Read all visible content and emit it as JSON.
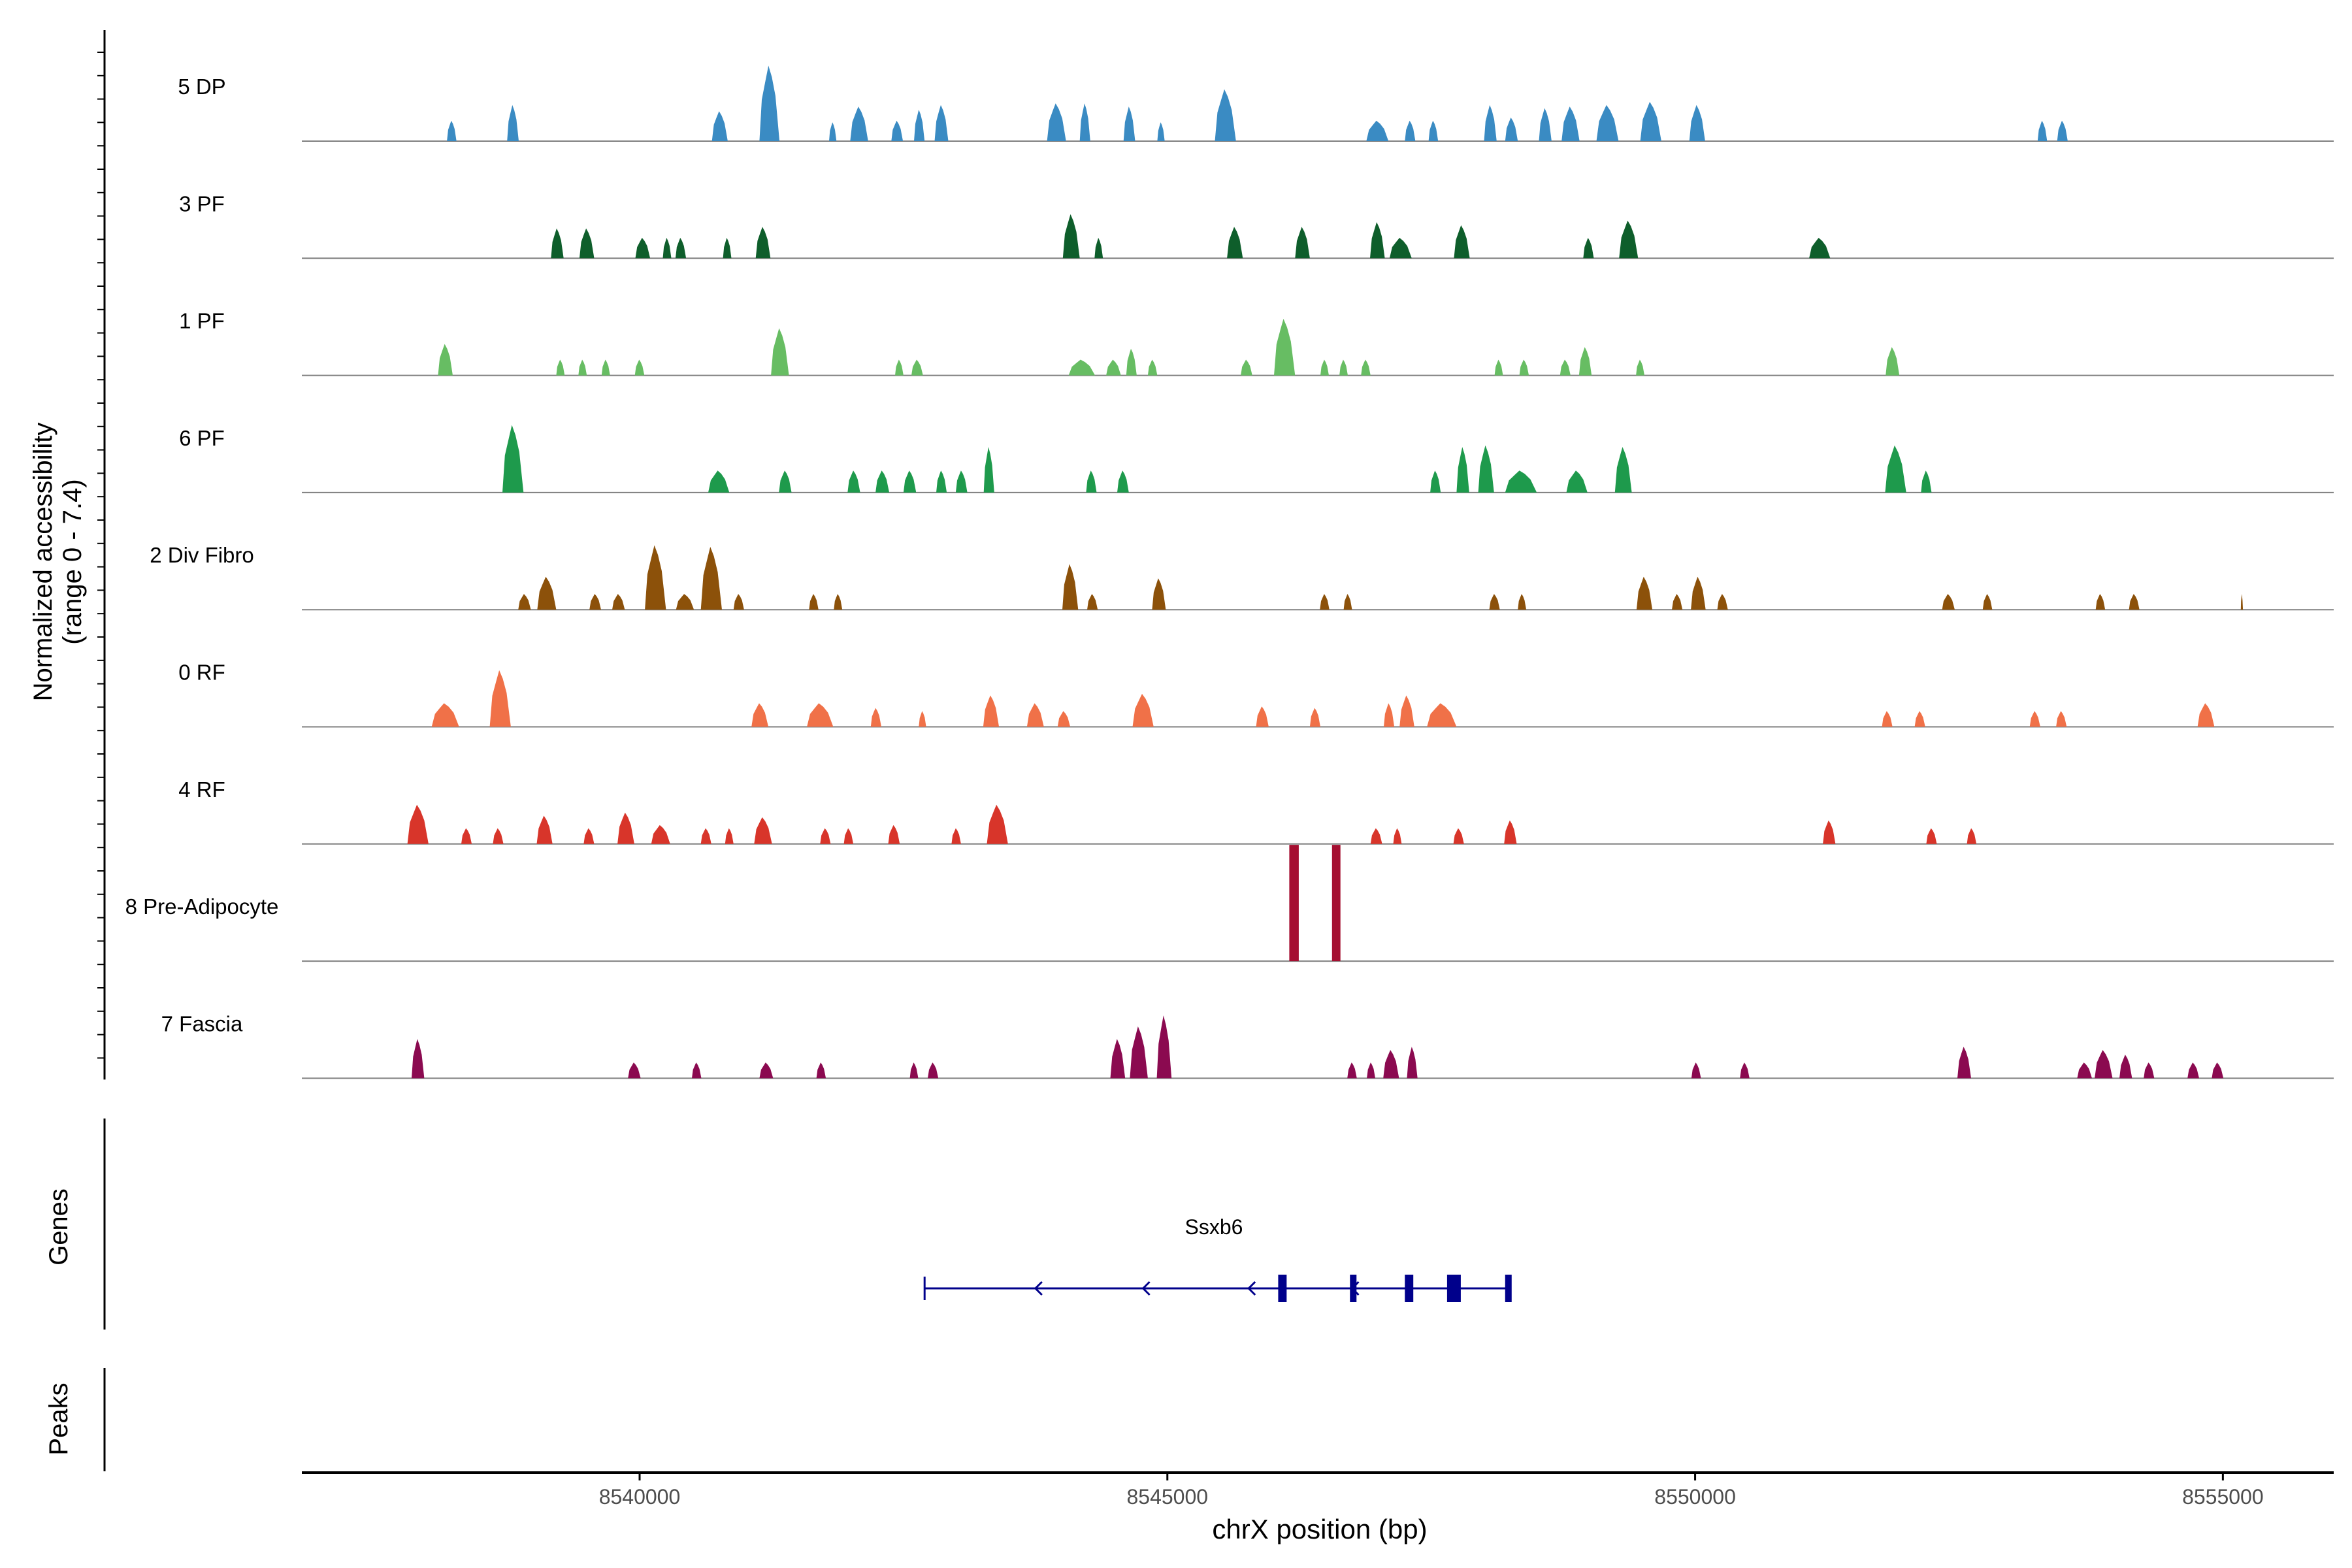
{
  "chart_data": {
    "type": "coverage",
    "ylabel_line1": "Normalized accessibility",
    "ylabel_line2": "(range 0 - 7.4)",
    "ylim": [
      0,
      7.4
    ],
    "xlabel": "chrX position (bp)",
    "xlim": [
      8536800,
      8556050
    ],
    "x_ticks": [
      {
        "value": 8540000,
        "label": "8540000"
      },
      {
        "value": 8545000,
        "label": "8545000"
      },
      {
        "value": 8550000,
        "label": "8550000"
      },
      {
        "value": 8555000,
        "label": "8555000"
      }
    ],
    "colors": {
      "5 DP": "#3a8bc3",
      "3 PF": "#0e5e2b",
      "1 PF": "#67bd63",
      "6 PF": "#1e9a4c",
      "2 Div Fibro": "#8c510a",
      "0 RF": "#f07148",
      "4 RF": "#d8352a",
      "8 Pre-Adipocyte": "#a50f31",
      "7 Fascia": "#8b0a50",
      "gene": "#00008b",
      "axis": "#000000",
      "baseline": "#808080",
      "tick_label": "#4d4d4d"
    },
    "tracks": [
      {
        "label": "5 DP",
        "peaks": [
          [
            8538220,
            90,
            1.3
          ],
          [
            8538800,
            110,
            2.3
          ],
          [
            8540760,
            150,
            1.9
          ],
          [
            8541230,
            190,
            4.8
          ],
          [
            8541830,
            70,
            1.2
          ],
          [
            8542080,
            170,
            2.2
          ],
          [
            8542440,
            110,
            1.3
          ],
          [
            8542650,
            100,
            2.0
          ],
          [
            8542860,
            130,
            2.3
          ],
          [
            8543950,
            180,
            2.4
          ],
          [
            8544220,
            100,
            2.4
          ],
          [
            8544640,
            110,
            2.2
          ],
          [
            8544940,
            70,
            1.2
          ],
          [
            8545550,
            200,
            3.3
          ],
          [
            8546990,
            210,
            1.3
          ],
          [
            8547300,
            100,
            1.3
          ],
          [
            8547520,
            90,
            1.3
          ],
          [
            8548060,
            120,
            2.3
          ],
          [
            8548260,
            120,
            1.5
          ],
          [
            8548580,
            120,
            2.1
          ],
          [
            8548820,
            170,
            2.2
          ],
          [
            8549170,
            210,
            2.3
          ],
          [
            8549580,
            200,
            2.5
          ],
          [
            8550020,
            150,
            2.3
          ],
          [
            8553290,
            90,
            1.3
          ],
          [
            8553480,
            100,
            1.3
          ]
        ]
      },
      {
        "label": "3 PF",
        "peaks": [
          [
            8539220,
            120,
            1.9
          ],
          [
            8539500,
            140,
            1.9
          ],
          [
            8540030,
            140,
            1.3
          ],
          [
            8540260,
            80,
            1.3
          ],
          [
            8540390,
            100,
            1.3
          ],
          [
            8540830,
            80,
            1.3
          ],
          [
            8541170,
            140,
            2.0
          ],
          [
            8544090,
            160,
            2.8
          ],
          [
            8544350,
            80,
            1.3
          ],
          [
            8545640,
            150,
            2.0
          ],
          [
            8546280,
            140,
            2.0
          ],
          [
            8546990,
            140,
            2.3
          ],
          [
            8547210,
            210,
            1.3
          ],
          [
            8547790,
            150,
            2.1
          ],
          [
            8548990,
            100,
            1.3
          ],
          [
            8549370,
            180,
            2.4
          ],
          [
            8551180,
            200,
            1.3
          ]
        ]
      },
      {
        "label": "1 PF",
        "peaks": [
          [
            8538160,
            140,
            2.0
          ],
          [
            8539250,
            80,
            1.0
          ],
          [
            8539460,
            80,
            1.0
          ],
          [
            8539680,
            80,
            1.0
          ],
          [
            8540000,
            90,
            1.0
          ],
          [
            8541330,
            170,
            3.0
          ],
          [
            8542460,
            80,
            1.0
          ],
          [
            8542630,
            110,
            1.0
          ],
          [
            8544190,
            250,
            1.0
          ],
          [
            8544490,
            140,
            1.0
          ],
          [
            8544660,
            100,
            1.7
          ],
          [
            8544860,
            90,
            1.0
          ],
          [
            8545750,
            110,
            1.0
          ],
          [
            8546110,
            200,
            3.6
          ],
          [
            8546490,
            80,
            1.0
          ],
          [
            8546670,
            80,
            1.0
          ],
          [
            8546880,
            90,
            1.0
          ],
          [
            8548140,
            80,
            1.0
          ],
          [
            8548380,
            90,
            1.0
          ],
          [
            8548770,
            100,
            1.0
          ],
          [
            8548960,
            120,
            1.8
          ],
          [
            8549480,
            80,
            1.0
          ],
          [
            8551870,
            130,
            1.8
          ]
        ]
      },
      {
        "label": "6 PF",
        "peaks": [
          [
            8538800,
            200,
            4.3
          ],
          [
            8540750,
            200,
            1.4
          ],
          [
            8541380,
            120,
            1.4
          ],
          [
            8542030,
            120,
            1.4
          ],
          [
            8542300,
            130,
            1.4
          ],
          [
            8542560,
            120,
            1.4
          ],
          [
            8542860,
            100,
            1.4
          ],
          [
            8543050,
            110,
            1.4
          ],
          [
            8543310,
            100,
            2.9
          ],
          [
            8544280,
            100,
            1.4
          ],
          [
            8544580,
            110,
            1.4
          ],
          [
            8547540,
            100,
            1.4
          ],
          [
            8547800,
            120,
            2.9
          ],
          [
            8548020,
            150,
            3.0
          ],
          [
            8548350,
            300,
            1.4
          ],
          [
            8548880,
            200,
            1.4
          ],
          [
            8549320,
            160,
            2.9
          ],
          [
            8551900,
            200,
            3.0
          ],
          [
            8552190,
            100,
            1.4
          ]
        ]
      },
      {
        "label": "2 Div Fibro",
        "peaks": [
          [
            8538910,
            120,
            1.0
          ],
          [
            8539120,
            180,
            2.1
          ],
          [
            8539580,
            110,
            1.0
          ],
          [
            8539800,
            120,
            1.0
          ],
          [
            8540150,
            200,
            4.1
          ],
          [
            8540430,
            170,
            1.0
          ],
          [
            8540680,
            200,
            4.0
          ],
          [
            8540940,
            100,
            1.0
          ],
          [
            8541650,
            90,
            1.0
          ],
          [
            8541880,
            80,
            1.0
          ],
          [
            8544080,
            150,
            2.9
          ],
          [
            8544290,
            100,
            1.0
          ],
          [
            8544920,
            130,
            2.0
          ],
          [
            8546490,
            90,
            1.0
          ],
          [
            8546710,
            80,
            1.0
          ],
          [
            8548100,
            100,
            1.0
          ],
          [
            8548360,
            80,
            1.0
          ],
          [
            8549520,
            150,
            2.1
          ],
          [
            8549830,
            100,
            1.0
          ],
          [
            8550030,
            140,
            2.1
          ],
          [
            8550260,
            100,
            1.0
          ],
          [
            8552400,
            120,
            1.0
          ],
          [
            8552770,
            90,
            1.0
          ],
          [
            8553840,
            90,
            1.0
          ],
          [
            8554160,
            100,
            1.0
          ],
          [
            8555180,
            20,
            1.0
          ]
        ]
      },
      {
        "label": "0 RF",
        "peaks": [
          [
            8538160,
            260,
            1.5
          ],
          [
            8538680,
            200,
            3.6
          ],
          [
            8541140,
            160,
            1.5
          ],
          [
            8541710,
            250,
            1.5
          ],
          [
            8542240,
            100,
            1.2
          ],
          [
            8542680,
            70,
            1.0
          ],
          [
            8543330,
            150,
            2.0
          ],
          [
            8543750,
            160,
            1.5
          ],
          [
            8544020,
            120,
            1.0
          ],
          [
            8544770,
            200,
            2.1
          ],
          [
            8545900,
            120,
            1.3
          ],
          [
            8546400,
            100,
            1.2
          ],
          [
            8547100,
            100,
            1.5
          ],
          [
            8547270,
            140,
            2.0
          ],
          [
            8547600,
            280,
            1.5
          ],
          [
            8551820,
            100,
            1.0
          ],
          [
            8552130,
            100,
            1.0
          ],
          [
            8553220,
            100,
            1.0
          ],
          [
            8553470,
            100,
            1.0
          ],
          [
            8554840,
            160,
            1.5
          ]
        ]
      },
      {
        "label": "4 RF",
        "peaks": [
          [
            8537900,
            200,
            2.5
          ],
          [
            8538360,
            100,
            1.0
          ],
          [
            8538660,
            100,
            1.0
          ],
          [
            8539100,
            150,
            1.8
          ],
          [
            8539520,
            100,
            1.0
          ],
          [
            8539870,
            160,
            2.0
          ],
          [
            8540200,
            180,
            1.2
          ],
          [
            8540630,
            100,
            1.0
          ],
          [
            8540850,
            80,
            1.0
          ],
          [
            8541170,
            170,
            1.7
          ],
          [
            8541760,
            100,
            1.0
          ],
          [
            8541980,
            90,
            1.0
          ],
          [
            8542410,
            110,
            1.2
          ],
          [
            8543000,
            90,
            1.0
          ],
          [
            8543390,
            200,
            2.5
          ],
          [
            8546980,
            110,
            1.0
          ],
          [
            8547180,
            80,
            1.0
          ],
          [
            8547760,
            100,
            1.0
          ],
          [
            8548250,
            120,
            1.5
          ],
          [
            8551270,
            120,
            1.5
          ],
          [
            8552240,
            100,
            1.0
          ],
          [
            8552620,
            90,
            1.0
          ]
        ]
      },
      {
        "label": "8 Pre-Adipocyte",
        "peaks": [
          [
            8546200,
            90,
            7.4
          ],
          [
            8546600,
            80,
            7.4
          ]
        ]
      },
      {
        "label": "7 Fascia",
        "peaks": [
          [
            8537900,
            120,
            2.5
          ],
          [
            8539950,
            120,
            1.0
          ],
          [
            8540540,
            90,
            1.0
          ],
          [
            8541200,
            130,
            1.0
          ],
          [
            8541720,
            90,
            1.0
          ],
          [
            8542600,
            80,
            1.0
          ],
          [
            8542780,
            100,
            1.0
          ],
          [
            8544530,
            140,
            2.5
          ],
          [
            8544730,
            170,
            3.3
          ],
          [
            8544970,
            140,
            4.0
          ],
          [
            8546750,
            90,
            1.0
          ],
          [
            8546930,
            80,
            1.0
          ],
          [
            8547120,
            150,
            1.8
          ],
          [
            8547320,
            100,
            2.0
          ],
          [
            8550010,
            90,
            1.0
          ],
          [
            8550470,
            90,
            1.0
          ],
          [
            8552550,
            130,
            2.0
          ],
          [
            8553690,
            140,
            1.0
          ],
          [
            8553870,
            170,
            1.8
          ],
          [
            8554080,
            120,
            1.5
          ],
          [
            8554300,
            100,
            1.0
          ],
          [
            8554720,
            110,
            1.0
          ],
          [
            8554950,
            110,
            1.0
          ]
        ]
      }
    ],
    "genes_label": "Genes",
    "peaks_label": "Peaks",
    "gene": {
      "name": "Ssxb6",
      "start": 8542700,
      "end": 8548250,
      "strand": "-",
      "exons": [
        [
          8546050,
          8546130
        ],
        [
          8546730,
          8546790
        ],
        [
          8547250,
          8547330
        ],
        [
          8547650,
          8547780
        ],
        [
          8548200,
          8548250
        ]
      ],
      "arrows": [
        8543750,
        8544770,
        8545770,
        8546750,
        8547700
      ]
    }
  }
}
